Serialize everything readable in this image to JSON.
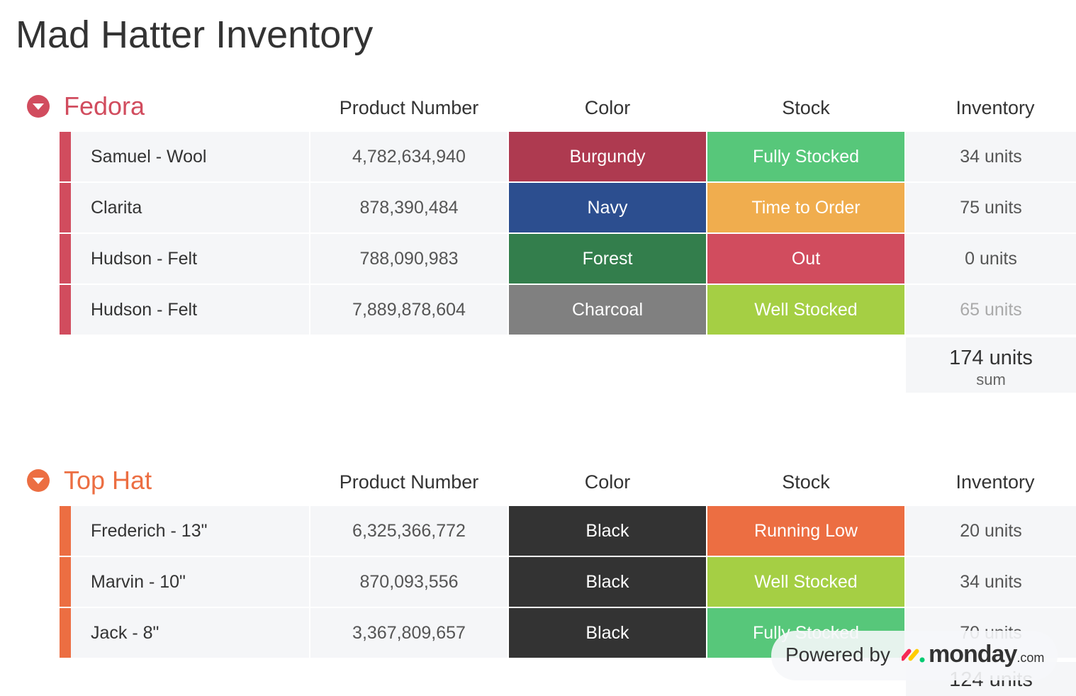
{
  "page": {
    "title": "Mad Hatter Inventory"
  },
  "columns": {
    "product_number": "Product Number",
    "color": "Color",
    "stock": "Stock",
    "inventory": "Inventory"
  },
  "groups": [
    {
      "name": "Fedora",
      "accent": "#d14c5e",
      "icon": "chevron-down-icon",
      "rows": [
        {
          "name": "Samuel - Wool",
          "number": "4,782,634,940",
          "color": "Burgundy",
          "color_hex": "#ae3a50",
          "stock": "Fully Stocked",
          "stock_hex": "#57c77a",
          "inventory": "34 units"
        },
        {
          "name": "Clarita",
          "number": "878,390,484",
          "color": "Navy",
          "color_hex": "#2c4e8f",
          "stock": "Time to Order",
          "stock_hex": "#f0ad4e",
          "inventory": "75 units"
        },
        {
          "name": "Hudson - Felt",
          "number": "788,090,983",
          "color": "Forest",
          "color_hex": "#337e4c",
          "stock": "Out",
          "stock_hex": "#d14c5e",
          "inventory": "0 units"
        },
        {
          "name": "Hudson - Felt",
          "number": "7,889,878,604",
          "color": "Charcoal",
          "color_hex": "#808080",
          "stock": "Well Stocked",
          "stock_hex": "#a5cf44",
          "inventory": "65 units"
        }
      ],
      "sum": {
        "value": "174 units",
        "label": "sum"
      }
    },
    {
      "name": "Top Hat",
      "accent": "#ec6e42",
      "icon": "chevron-down-icon",
      "rows": [
        {
          "name": "Frederich - 13\"",
          "number": "6,325,366,772",
          "color": "Black",
          "color_hex": "#333333",
          "stock": "Running Low",
          "stock_hex": "#ec6e42",
          "inventory": "20 units"
        },
        {
          "name": "Marvin - 10\"",
          "number": "870,093,556",
          "color": "Black",
          "color_hex": "#333333",
          "stock": "Well Stocked",
          "stock_hex": "#a5cf44",
          "inventory": "34 units"
        },
        {
          "name": "Jack - 8\"",
          "number": "3,367,809,657",
          "color": "Black",
          "color_hex": "#333333",
          "stock": "Fully Stocked",
          "stock_hex": "#57c77a",
          "inventory": "70 units"
        }
      ],
      "sum": {
        "value": "124 units",
        "label": ""
      }
    }
  ],
  "badge": {
    "prefix": "Powered by",
    "brand": "monday",
    "tld": ".com",
    "logo_icon": "monday-logo-icon"
  }
}
